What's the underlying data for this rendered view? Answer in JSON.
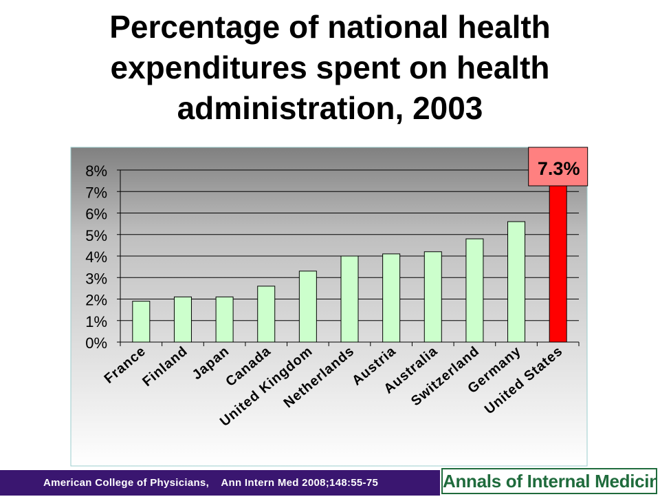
{
  "title_lines": [
    "Percentage of national health",
    "expenditures spent on health",
    "administration, 2003"
  ],
  "footer": {
    "citation": "American College of Physicians,    Ann Intern Med 2008;148:55-75",
    "logo_text": "Annals of Internal Medicine"
  },
  "colors": {
    "bar_default": "#ccffcc",
    "bar_highlight": "#ff0000",
    "callout_fill": "#ff8080",
    "plot_top": "#808080",
    "plot_mid": "#c0c0c0",
    "frame_border": "#99cccc",
    "footer_bg": "#3a1670",
    "logo_green": "#1f6b3c"
  },
  "chart_data": {
    "type": "bar",
    "title": "Percentage of national health expenditures spent on health administration, 2003",
    "categories": [
      "France",
      "Finland",
      "Japan",
      "Canada",
      "United Kingdom",
      "Netherlands",
      "Austria",
      "Australia",
      "Switzerland",
      "Germany",
      "United States"
    ],
    "values": [
      1.9,
      2.1,
      2.1,
      2.6,
      3.3,
      4.0,
      4.1,
      4.2,
      4.8,
      5.6,
      7.3
    ],
    "ylim": [
      0,
      8
    ],
    "yticks": [
      0,
      1,
      2,
      3,
      4,
      5,
      6,
      7,
      8
    ],
    "ytick_labels": [
      "0%",
      "1%",
      "2%",
      "3%",
      "4%",
      "5%",
      "6%",
      "7%",
      "8%"
    ],
    "xlabel": "",
    "ylabel": "",
    "highlight_index": 10,
    "annotation": "7.3%",
    "grid": "horizontal",
    "legend": "none"
  }
}
